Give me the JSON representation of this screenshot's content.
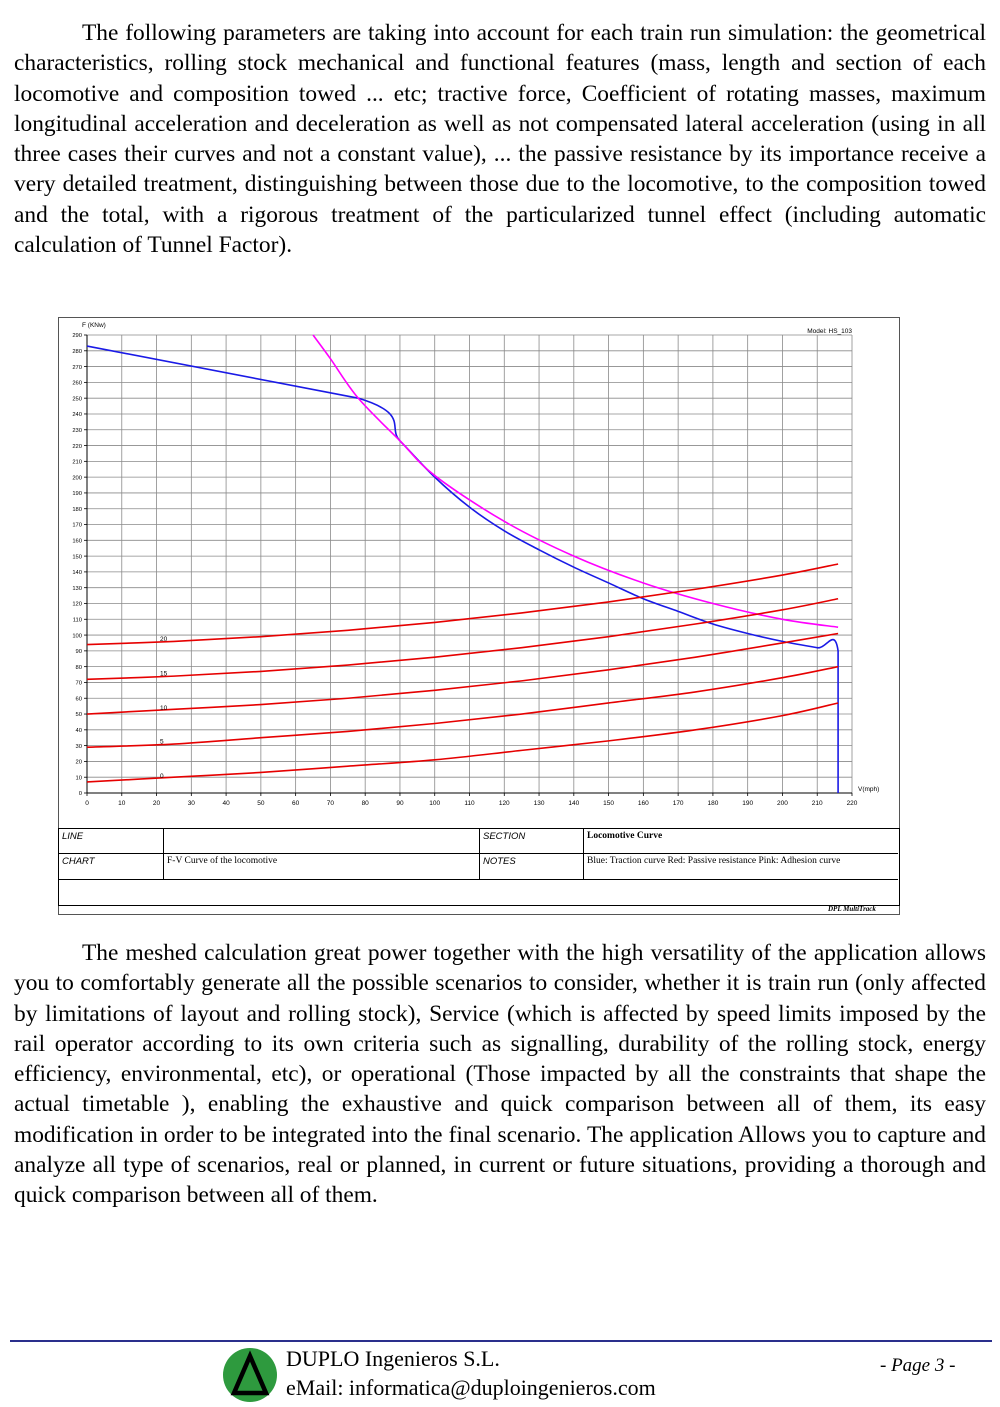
{
  "paragraph1": "The following parameters are taking into account for each train run simulation: the geometrical characteristics, rolling stock mechanical and functional features (mass, length and section of each locomotive and composition towed ... etc; tractive force, Coefficient of rotating masses, maximum longitudinal acceleration and deceleration as well as not compensated lateral acceleration (using in all three cases their curves and not a constant value), ... the passive resistance by its importance receive a very detailed treatment, distinguishing between those due to the locomotive, to the composition towed and the total, with a rigorous treatment of the particularized tunnel effect (including automatic calculation of Tunnel Factor).",
  "paragraph2": "The meshed calculation great power together with the high versatility of the application allows you to comfortably generate all the possible scenarios to consider, whether it is train run (only affected by limitations of layout and rolling stock), Service (which is affected by speed limits imposed by the rail operator according to its own criteria such as signalling, durability of the rolling stock, energy efficiency, environmental, etc), or operational (Those impacted by all the constraints that shape the actual timetable ), enabling the exhaustive and quick comparison between all of them, its easy modification in order to be integrated into the final scenario. The application Allows you to capture and analyze all type of scenarios, real or planned, in current or future situations, providing a thorough and quick comparison between all of them.",
  "chart_data": {
    "type": "line",
    "title": "",
    "model_label": "Model: HS_103",
    "ylabel": "F (KNw)",
    "xlabel": "V(mph)",
    "xlim": [
      0,
      220
    ],
    "ylim": [
      0,
      290
    ],
    "xticks": [
      0,
      10,
      20,
      30,
      40,
      50,
      60,
      70,
      80,
      90,
      100,
      110,
      120,
      130,
      140,
      150,
      160,
      170,
      180,
      190,
      200,
      210,
      220
    ],
    "yticks": [
      0,
      10,
      20,
      30,
      40,
      50,
      60,
      70,
      80,
      90,
      100,
      110,
      120,
      130,
      140,
      150,
      160,
      170,
      180,
      190,
      200,
      210,
      220,
      230,
      240,
      250,
      260,
      270,
      280,
      290
    ],
    "grid": true,
    "colors": {
      "traction": "#1a1ae6",
      "passive": "#e60000",
      "adhesion": "#ff00ff"
    },
    "series": [
      {
        "name": "Traction",
        "color": "#1a1ae6",
        "x": [
          0,
          78,
          90,
          100,
          110,
          120,
          130,
          140,
          150,
          160,
          170,
          180,
          190,
          200,
          210,
          216,
          216
        ],
        "y": [
          283,
          250,
          223,
          200,
          181,
          166,
          154,
          143,
          133,
          123,
          115,
          107,
          101,
          96,
          92,
          90,
          0
        ]
      },
      {
        "name": "Adhesion",
        "color": "#ff00ff",
        "x": [
          65,
          70,
          78,
          90,
          100,
          120,
          140,
          160,
          180,
          200,
          216
        ],
        "y": [
          290,
          275,
          250,
          223,
          201,
          172,
          150,
          133,
          120,
          110,
          105
        ]
      },
      {
        "name": "Passive resistance 0",
        "label": "0",
        "color": "#e60000",
        "x": [
          0,
          25,
          50,
          75,
          100,
          125,
          150,
          175,
          200,
          216
        ],
        "y": [
          7,
          10,
          13,
          17,
          21,
          27,
          33,
          40,
          49,
          57
        ]
      },
      {
        "name": "Passive resistance 5",
        "label": "5",
        "color": "#e60000",
        "x": [
          0,
          25,
          50,
          75,
          100,
          125,
          150,
          175,
          200,
          216
        ],
        "y": [
          29,
          31,
          35,
          39,
          44,
          50,
          57,
          64,
          73,
          80
        ]
      },
      {
        "name": "Passive resistance 10",
        "label": "10",
        "color": "#e60000",
        "x": [
          0,
          25,
          50,
          75,
          100,
          125,
          150,
          175,
          200,
          216
        ],
        "y": [
          50,
          53,
          56,
          60,
          65,
          71,
          78,
          86,
          95,
          101
        ]
      },
      {
        "name": "Passive resistance 15",
        "label": "15",
        "color": "#e60000",
        "x": [
          0,
          25,
          50,
          75,
          100,
          125,
          150,
          175,
          200,
          216
        ],
        "y": [
          72,
          74,
          77,
          81,
          86,
          92,
          99,
          107,
          116,
          123
        ]
      },
      {
        "name": "Passive resistance 20",
        "label": "20",
        "color": "#e60000",
        "x": [
          0,
          25,
          50,
          75,
          100,
          125,
          150,
          175,
          200,
          216
        ],
        "y": [
          94,
          96,
          99,
          103,
          108,
          114,
          121,
          129,
          138,
          145
        ]
      }
    ]
  },
  "table": {
    "line_label": "LINE",
    "line_value": "",
    "section_label": "SECTION",
    "section_value": "Locomotive Curve",
    "chart_label": "CHART",
    "chart_value": "F-V Curve of the locomotive",
    "notes_label": "NOTES",
    "notes_value": "Blue: Traction curve Red: Passive resistance Pink: Adhesion curve"
  },
  "credit": "DPL MultiTrack",
  "footer": {
    "company": "DUPLO Ingenieros S.L.",
    "email": "eMail: informatica@duploingenieros.com",
    "page": "- Page 3 -",
    "logo_color": "#2e9a3e"
  }
}
